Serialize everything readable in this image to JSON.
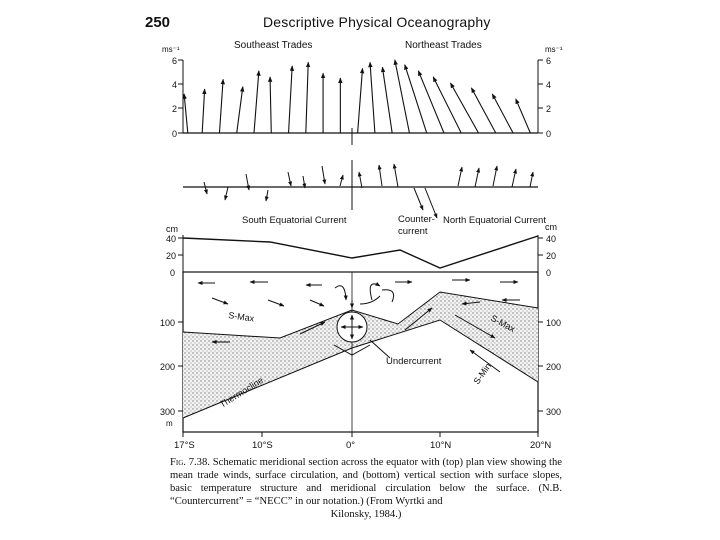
{
  "header": {
    "page_number": "250",
    "book_title": "Descriptive Physical Oceanography"
  },
  "wind_panel": {
    "unit_left": "ms⁻¹",
    "unit_right": "ms⁻¹",
    "label_left": "Southeast Trades",
    "label_right": "Northeast Trades",
    "ticks": [
      "6",
      "4",
      "2",
      "0"
    ]
  },
  "current_panel": {
    "label_south": "South Equatorial Current",
    "label_counter": "Counter-",
    "label_counter_2": "current",
    "label_north": "North Equatorial Current",
    "unit_left": "cm",
    "unit_right": "cm",
    "ticks": [
      "40",
      "20",
      "0"
    ]
  },
  "section_panel": {
    "depth_ticks": [
      "100",
      "200",
      "300"
    ],
    "depth_unit": "m",
    "lat_ticks": [
      "17°S",
      "10°S",
      "0°",
      "10°N",
      "20°N"
    ],
    "label_smax_left": "S-Max",
    "label_smax_right": "S-Max",
    "label_smin": "S-Min",
    "label_undercurrent": "Undercurrent",
    "label_thermocline": "Thermocline"
  },
  "caption": {
    "fig_label": "Fig. 7.38.",
    "text": "Schematic meridional section across the equator with (top) plan view showing the mean trade winds, surface circulation, and (bottom) vertical section with surface slopes, basic temperature structure and meridional circulation below the surface. (N.B. “Countercurrent” = “NECC” in our notation.) (From Wyrtki and",
    "text_last": "Kilonsky, 1984.)"
  },
  "wind_vectors": [
    {
      "lat": -16.5,
      "u": -0.3,
      "v": 3.2
    },
    {
      "lat": -15.0,
      "u": 0.2,
      "v": 3.6
    },
    {
      "lat": -13.2,
      "u": 0.3,
      "v": 4.4
    },
    {
      "lat": -11.4,
      "u": 0.5,
      "v": 3.8
    },
    {
      "lat": -9.6,
      "u": 0.4,
      "v": 5.1
    },
    {
      "lat": -7.8,
      "u": -0.1,
      "v": 4.6
    },
    {
      "lat": -6.0,
      "u": 0.3,
      "v": 5.5
    },
    {
      "lat": -4.2,
      "u": 0.2,
      "v": 5.8
    },
    {
      "lat": -2.4,
      "u": 0.0,
      "v": 4.9
    },
    {
      "lat": -0.6,
      "u": 0.0,
      "v": 4.5
    },
    {
      "lat": 1.2,
      "u": 0.4,
      "v": 5.3
    },
    {
      "lat": 3.0,
      "u": -0.4,
      "v": 5.8
    },
    {
      "lat": 4.8,
      "u": -0.8,
      "v": 5.4
    },
    {
      "lat": 6.6,
      "u": -1.2,
      "v": 6.0
    },
    {
      "lat": 8.4,
      "u": -1.8,
      "v": 5.6
    },
    {
      "lat": 10.2,
      "u": -2.1,
      "v": 5.1
    },
    {
      "lat": 12.0,
      "u": -2.3,
      "v": 4.6
    },
    {
      "lat": 13.8,
      "u": -2.3,
      "v": 4.1
    },
    {
      "lat": 15.6,
      "u": -2.0,
      "v": 3.7
    },
    {
      "lat": 17.4,
      "u": -1.7,
      "v": 3.2
    },
    {
      "lat": 19.2,
      "u": -1.2,
      "v": 2.8
    }
  ]
}
